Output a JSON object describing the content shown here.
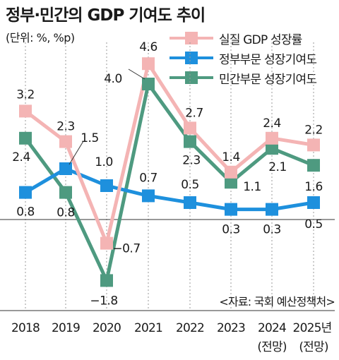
{
  "title": "정부·민간의 GDP 기여도 추이",
  "unit": "(단위: %, %p)",
  "source": "<자료: 국회 예산정책처>",
  "colors": {
    "real_gdp": "#f4b4b4",
    "government": "#1e90dd",
    "private": "#4e9a80"
  },
  "chart_data": {
    "type": "line",
    "title": "정부·민간의 GDP 기여도 추이",
    "categories": [
      "2018",
      "2019",
      "2020",
      "2021",
      "2022",
      "2023",
      "2024",
      "2025년"
    ],
    "category_notes": [
      "",
      "",
      "",
      "",
      "",
      "",
      "(전망)",
      "(전망)"
    ],
    "ylim": [
      -2.2,
      5.0
    ],
    "series": [
      {
        "name": "실질 GDP 성장률",
        "values": [
          3.2,
          2.3,
          -0.7,
          4.6,
          2.7,
          1.4,
          2.4,
          2.2
        ],
        "labels": [
          "3.2",
          "2.3",
          "−0.7",
          "4.6",
          "2.7",
          "1.4",
          "2.4",
          "2.2"
        ]
      },
      {
        "name": "정부부문 성장기여도",
        "values": [
          0.8,
          1.5,
          1.0,
          0.7,
          0.5,
          0.3,
          0.3,
          0.5
        ],
        "labels": [
          "0.8",
          "1.5",
          "1.0",
          "0.7",
          "0.5",
          "0.3",
          "0.3",
          "0.5"
        ]
      },
      {
        "name": "민간부문 성장기여도",
        "values": [
          2.4,
          0.8,
          -1.8,
          4.0,
          2.3,
          1.1,
          2.1,
          1.6
        ],
        "labels": [
          "2.4",
          "0.8",
          "−1.8",
          "4.0",
          "2.3",
          "1.1",
          "2.1",
          "1.6"
        ]
      }
    ]
  }
}
